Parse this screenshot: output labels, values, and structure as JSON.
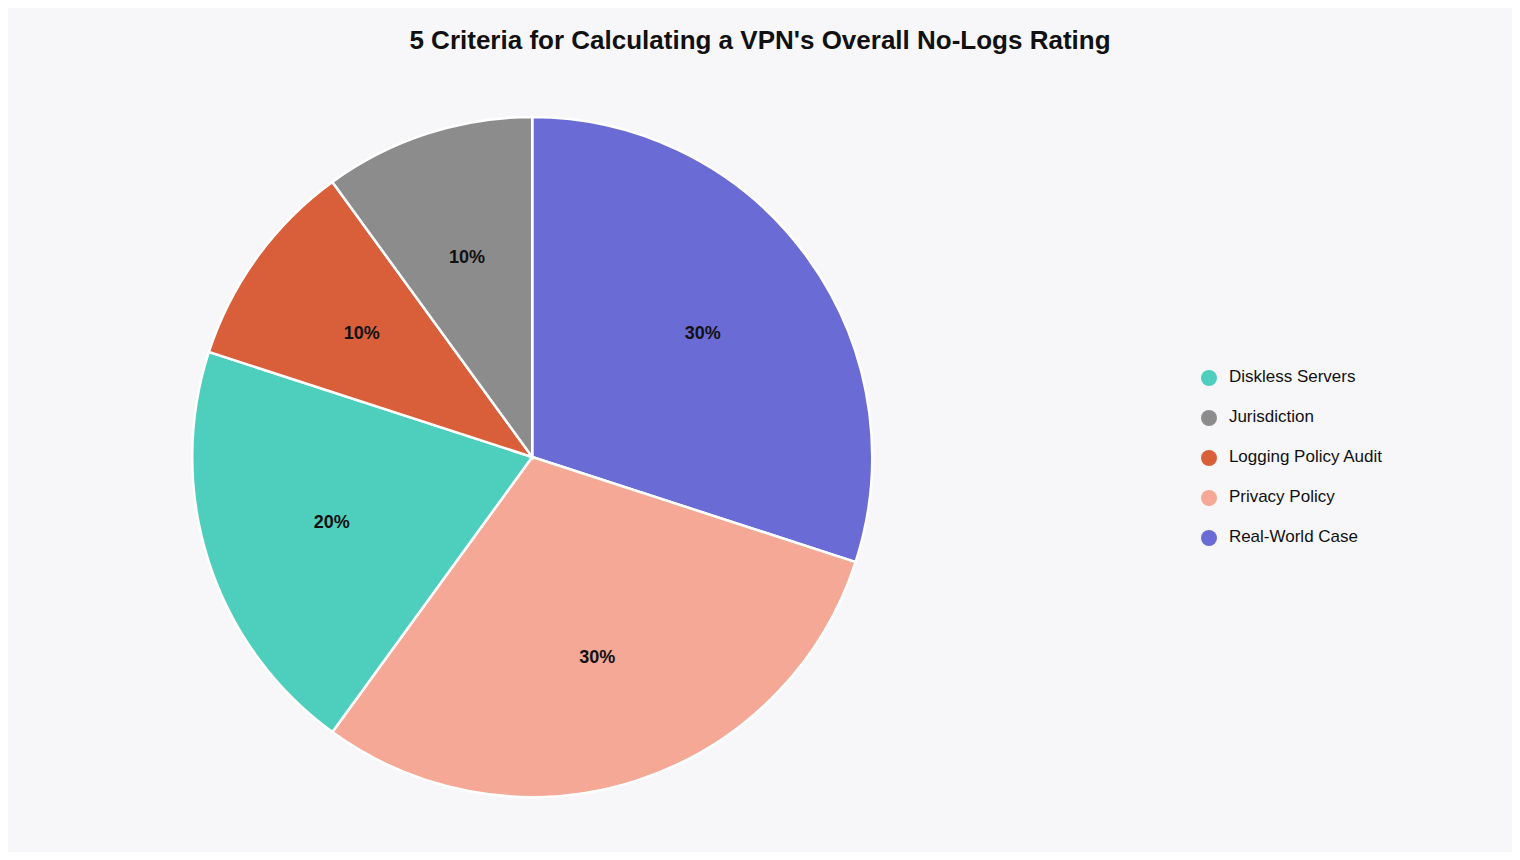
{
  "chart_data": {
    "type": "pie",
    "title": "5 Criteria for Calculating a VPN's Overall No-Logs Rating",
    "categories": [
      "Real-World Case",
      "Privacy Policy",
      "Diskless Servers",
      "Logging Policy Audit",
      "Jurisdiction"
    ],
    "values": [
      30,
      30,
      20,
      10,
      10
    ],
    "value_labels": [
      "30%",
      "30%",
      "20%",
      "10%",
      "10%"
    ],
    "colors": [
      "#6B6BD6",
      "#F4A895",
      "#4ECFBE",
      "#D95F3B",
      "#8C8C8C"
    ],
    "data_labels": true,
    "legend": "right"
  }
}
